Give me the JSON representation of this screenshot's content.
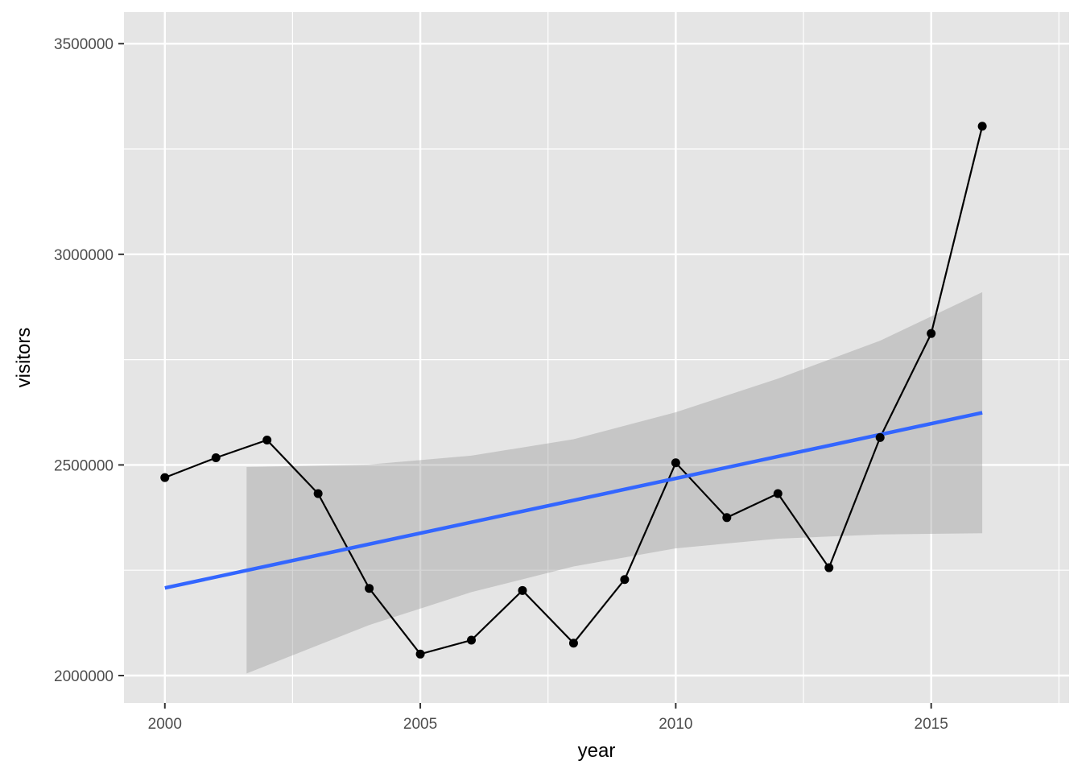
{
  "chart_data": {
    "type": "line",
    "xlabel": "year",
    "ylabel": "visitors",
    "xlim": [
      1999.2,
      2017.7
    ],
    "ylim": [
      1935000,
      3575000
    ],
    "x_major_ticks": [
      2000,
      2005,
      2010,
      2015
    ],
    "x_minor_ticks": [
      2002.5,
      2007.5,
      2012.5,
      2017.5
    ],
    "y_major_ticks": [
      2000000,
      2500000,
      3000000,
      3500000
    ],
    "y_minor_ticks": [
      2250000,
      2750000,
      3250000
    ],
    "x_tick_labels": [
      "2000",
      "2005",
      "2010",
      "2015"
    ],
    "y_tick_labels": [
      "2000000",
      "2500000",
      "3000000",
      "3500000"
    ],
    "grid": true,
    "panel_color": "#e5e5e5",
    "series": [
      {
        "kind": "line+points",
        "color": "#000000",
        "x": [
          2000,
          2001,
          2002,
          2003,
          2004,
          2005,
          2006,
          2007,
          2008,
          2009,
          2010,
          2011,
          2012,
          2013,
          2014,
          2015,
          2016
        ],
        "values": [
          2470000,
          2517000,
          2559000,
          2432000,
          2207000,
          2051000,
          2084000,
          2202000,
          2077000,
          2228000,
          2505000,
          2375000,
          2432000,
          2256000,
          2565000,
          2812000,
          3304000
        ]
      }
    ],
    "trend": {
      "kind": "linear-fit",
      "color": "#3366ff",
      "x": [
        2000,
        2016
      ],
      "values": [
        2208000,
        2624000
      ]
    },
    "confidence_band": {
      "color": "#999999",
      "x": [
        2001.6,
        2004,
        2006,
        2008,
        2010,
        2012,
        2014,
        2016
      ],
      "upper": [
        2495000,
        2501000,
        2522000,
        2561000,
        2625000,
        2705000,
        2795000,
        2910000
      ],
      "lower": [
        2005000,
        2120000,
        2198000,
        2259000,
        2302000,
        2325000,
        2335000,
        2338000
      ]
    }
  }
}
